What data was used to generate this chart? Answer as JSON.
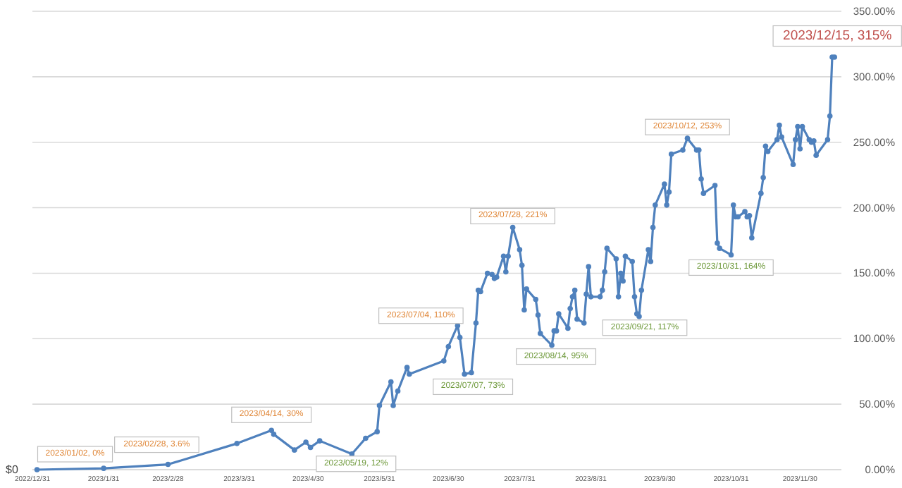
{
  "chart_data": {
    "type": "line",
    "x": [
      "2023-01-02",
      "2023-01-31",
      "2023-02-28",
      "2023-03-30",
      "2023-04-14",
      "2023-04-15",
      "2023-04-24",
      "2023-04-29",
      "2023-05-01",
      "2023-05-05",
      "2023-05-19",
      "2023-05-25",
      "2023-05-30",
      "2023-05-31",
      "2023-06-05",
      "2023-06-06",
      "2023-06-08",
      "2023-06-12",
      "2023-06-13",
      "2023-06-28",
      "2023-06-30",
      "2023-07-04",
      "2023-07-05",
      "2023-07-07",
      "2023-07-10",
      "2023-07-12",
      "2023-07-13",
      "2023-07-14",
      "2023-07-17",
      "2023-07-19",
      "2023-07-20",
      "2023-07-21",
      "2023-07-24",
      "2023-07-25",
      "2023-07-26",
      "2023-07-28",
      "2023-07-31",
      "2023-08-01",
      "2023-08-02",
      "2023-08-03",
      "2023-08-07",
      "2023-08-08",
      "2023-08-09",
      "2023-08-14",
      "2023-08-15",
      "2023-08-16",
      "2023-08-17",
      "2023-08-21",
      "2023-08-22",
      "2023-08-23",
      "2023-08-24",
      "2023-08-25",
      "2023-08-28",
      "2023-08-29",
      "2023-08-30",
      "2023-08-31",
      "2023-09-04",
      "2023-09-05",
      "2023-09-06",
      "2023-09-07",
      "2023-09-11",
      "2023-09-12",
      "2023-09-13",
      "2023-09-14",
      "2023-09-15",
      "2023-09-18",
      "2023-09-19",
      "2023-09-20",
      "2023-09-21",
      "2023-09-22",
      "2023-09-25",
      "2023-09-26",
      "2023-09-27",
      "2023-09-28",
      "2023-10-02",
      "2023-10-03",
      "2023-10-04",
      "2023-10-05",
      "2023-10-10",
      "2023-10-12",
      "2023-10-16",
      "2023-10-17",
      "2023-10-18",
      "2023-10-19",
      "2023-10-24",
      "2023-10-25",
      "2023-10-26",
      "2023-10-31",
      "2023-11-01",
      "2023-11-02",
      "2023-11-03",
      "2023-11-06",
      "2023-11-07",
      "2023-11-08",
      "2023-11-09",
      "2023-11-13",
      "2023-11-14",
      "2023-11-15",
      "2023-11-16",
      "2023-11-20",
      "2023-11-21",
      "2023-11-22",
      "2023-11-27",
      "2023-11-28",
      "2023-11-29",
      "2023-11-30",
      "2023-12-01",
      "2023-12-04",
      "2023-12-05",
      "2023-12-06",
      "2023-12-07",
      "2023-12-12",
      "2023-12-13",
      "2023-12-14",
      "2023-12-15"
    ],
    "series": [
      {
        "color": "#4f81bd",
        "values": [
          0,
          1,
          4,
          20,
          30,
          27,
          15,
          21,
          17,
          22,
          12,
          24,
          29,
          49,
          67,
          49,
          60,
          78,
          73,
          83,
          94,
          110,
          101,
          73,
          74,
          112,
          137,
          136,
          150,
          149,
          146,
          147,
          163,
          151,
          163,
          185,
          168,
          156,
          122,
          138,
          130,
          118,
          104,
          95,
          106,
          106,
          119,
          108,
          123,
          132,
          137,
          115,
          112,
          134,
          155,
          132,
          132,
          137,
          151,
          169,
          161,
          132,
          150,
          144,
          163,
          159,
          132,
          119,
          117,
          137,
          168,
          159,
          185,
          202,
          218,
          202,
          212,
          241,
          244,
          253,
          244,
          244,
          222,
          211,
          217,
          173,
          169,
          164,
          202,
          193,
          193,
          197,
          193,
          194,
          177,
          211,
          223,
          247,
          243,
          252,
          263,
          254,
          233,
          252,
          262,
          245,
          262,
          252,
          250,
          251,
          240,
          252,
          270,
          315,
          315
        ]
      }
    ],
    "xlim": [
      "2022-12-31",
      "2023-12-18"
    ],
    "xticks": [
      {
        "value": "2022-12-31",
        "label": "2022/12/31"
      },
      {
        "value": "2023-01-31",
        "label": "2023/1/31"
      },
      {
        "value": "2023-02-28",
        "label": "2023/2/28"
      },
      {
        "value": "2023-03-31",
        "label": "2023/3/31"
      },
      {
        "value": "2023-04-30",
        "label": "2023/4/30"
      },
      {
        "value": "2023-05-31",
        "label": "2023/5/31"
      },
      {
        "value": "2023-06-30",
        "label": "2023/6/30"
      },
      {
        "value": "2023-07-31",
        "label": "2023/7/31"
      },
      {
        "value": "2023-08-31",
        "label": "2023/8/31"
      },
      {
        "value": "2023-09-30",
        "label": "2023/9/30"
      },
      {
        "value": "2023-10-31",
        "label": "2023/10/31"
      },
      {
        "value": "2023-11-30",
        "label": "2023/11/30"
      }
    ],
    "ylim": [
      0,
      350
    ],
    "yticks": [
      {
        "value": 0,
        "label": "0.00%"
      },
      {
        "value": 50,
        "label": "50.00%"
      },
      {
        "value": 100,
        "label": "100.00%"
      },
      {
        "value": 150,
        "label": "150.00%"
      },
      {
        "value": 200,
        "label": "200.00%"
      },
      {
        "value": 250,
        "label": "250.00%"
      },
      {
        "value": 300,
        "label": "300.00%"
      },
      {
        "value": 350,
        "label": "350.00%"
      }
    ],
    "grid": "y",
    "marker": "circle",
    "line_style": "solid",
    "annotations": [
      "$0",
      {
        "text": "2023/01/02, 0%",
        "x": "2023-01-02",
        "y": 0
      },
      {
        "text": "2023/02/28, 3.6%",
        "x": "2023-02-28",
        "y": 4
      },
      {
        "text": "2023/04/14, 30%",
        "x": "2023-04-14",
        "y": 30
      },
      {
        "text": "2023/05/19, 12%",
        "x": "2023-05-19",
        "y": 12
      },
      {
        "text": "2023/07/04, 110%",
        "x": "2023-07-04",
        "y": 110
      },
      {
        "text": "2023/07/07, 73%",
        "x": "2023-07-07",
        "y": 73
      },
      {
        "text": "2023/07/28, 221%",
        "x": "2023-07-28",
        "y": 185
      },
      {
        "text": "2023/08/14, 95%",
        "x": "2023-08-14",
        "y": 95
      },
      {
        "text": "2023/09/21, 117%",
        "x": "2023-09-21",
        "y": 117
      },
      {
        "text": "2023/10/12, 253%",
        "x": "2023-10-12",
        "y": 253
      },
      {
        "text": "2023/10/31, 164%",
        "x": "2023-10-31",
        "y": 164
      },
      {
        "text": "2023/12/15, 315%",
        "x": "2023-12-15",
        "y": 315
      }
    ]
  }
}
